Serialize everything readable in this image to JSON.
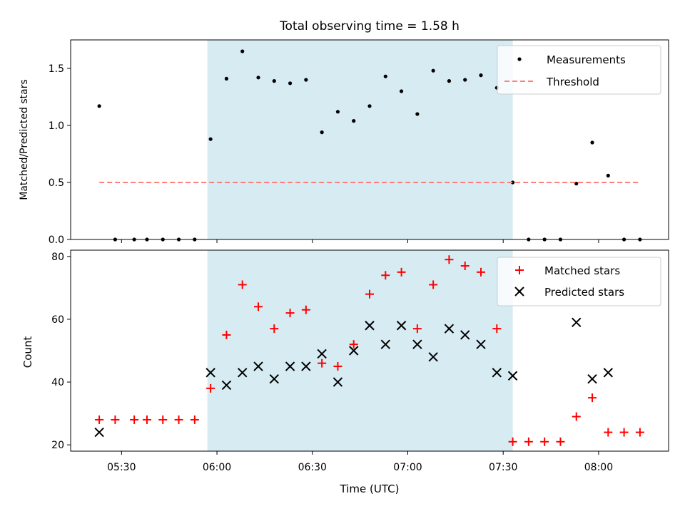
{
  "chart_data": [
    {
      "type": "scatter",
      "title": "Total observing time = 1.58 h",
      "ylabel": "Matched/Predicted stars",
      "xlabel": "",
      "ylim": [
        0,
        1.75
      ],
      "xlim": [
        "05:14",
        "08:22"
      ],
      "yticks": [
        {
          "value": 0.0,
          "label": "0.0"
        },
        {
          "value": 0.5,
          "label": "0.5"
        },
        {
          "value": 1.0,
          "label": "1.0"
        },
        {
          "value": 1.5,
          "label": "1.5"
        }
      ],
      "shaded_span": [
        "05:57",
        "07:33"
      ],
      "shaded_color": "#add8e6",
      "legend_position": "top-right",
      "series": [
        {
          "name": "Measurements",
          "marker": "dot",
          "color": "#000000",
          "points": [
            [
              "05:23",
              1.17
            ],
            [
              "05:28",
              0.0
            ],
            [
              "05:34",
              0.0
            ],
            [
              "05:38",
              0.0
            ],
            [
              "05:43",
              0.0
            ],
            [
              "05:48",
              0.0
            ],
            [
              "05:53",
              0.0
            ],
            [
              "05:58",
              0.88
            ],
            [
              "06:03",
              1.41
            ],
            [
              "06:08",
              1.65
            ],
            [
              "06:13",
              1.42
            ],
            [
              "06:18",
              1.39
            ],
            [
              "06:23",
              1.37
            ],
            [
              "06:28",
              1.4
            ],
            [
              "06:33",
              0.94
            ],
            [
              "06:38",
              1.12
            ],
            [
              "06:43",
              1.04
            ],
            [
              "06:48",
              1.17
            ],
            [
              "06:53",
              1.43
            ],
            [
              "06:58",
              1.3
            ],
            [
              "07:03",
              1.1
            ],
            [
              "07:08",
              1.48
            ],
            [
              "07:13",
              1.39
            ],
            [
              "07:18",
              1.4
            ],
            [
              "07:23",
              1.44
            ],
            [
              "07:28",
              1.33
            ],
            [
              "07:33",
              0.5
            ],
            [
              "07:38",
              0.0
            ],
            [
              "07:43",
              0.0
            ],
            [
              "07:48",
              0.0
            ],
            [
              "07:53",
              0.49
            ],
            [
              "07:58",
              0.85
            ],
            [
              "08:03",
              0.56
            ],
            [
              "08:08",
              0.0
            ],
            [
              "08:13",
              0.0
            ]
          ]
        },
        {
          "name": "Threshold",
          "marker": "dashed-line",
          "color": "#ff7f7f",
          "points": [
            [
              "05:23",
              0.5
            ],
            [
              "08:13",
              0.5
            ]
          ]
        }
      ]
    },
    {
      "type": "scatter",
      "title": "",
      "xlabel": "Time (UTC)",
      "ylabel": "Count",
      "ylim": [
        18,
        82
      ],
      "xlim": [
        "05:14",
        "08:22"
      ],
      "xticks": [
        "05:30",
        "06:00",
        "06:30",
        "07:00",
        "07:30",
        "08:00"
      ],
      "yticks": [
        {
          "value": 20,
          "label": "20"
        },
        {
          "value": 40,
          "label": "40"
        },
        {
          "value": 60,
          "label": "60"
        },
        {
          "value": 80,
          "label": "80"
        }
      ],
      "shaded_span": [
        "05:57",
        "07:33"
      ],
      "shaded_color": "#add8e6",
      "legend_position": "top-right",
      "series": [
        {
          "name": "Matched stars",
          "marker": "plus",
          "color": "#ff0000",
          "points": [
            [
              "05:23",
              28
            ],
            [
              "05:28",
              28
            ],
            [
              "05:34",
              28
            ],
            [
              "05:38",
              28
            ],
            [
              "05:43",
              28
            ],
            [
              "05:48",
              28
            ],
            [
              "05:53",
              28
            ],
            [
              "05:58",
              38
            ],
            [
              "06:03",
              55
            ],
            [
              "06:08",
              71
            ],
            [
              "06:13",
              64
            ],
            [
              "06:18",
              57
            ],
            [
              "06:23",
              62
            ],
            [
              "06:28",
              63
            ],
            [
              "06:33",
              46
            ],
            [
              "06:38",
              45
            ],
            [
              "06:43",
              52
            ],
            [
              "06:48",
              68
            ],
            [
              "06:53",
              74
            ],
            [
              "06:58",
              75
            ],
            [
              "07:03",
              57
            ],
            [
              "07:08",
              71
            ],
            [
              "07:13",
              79
            ],
            [
              "07:18",
              77
            ],
            [
              "07:23",
              75
            ],
            [
              "07:28",
              57
            ],
            [
              "07:33",
              21
            ],
            [
              "07:38",
              21
            ],
            [
              "07:43",
              21
            ],
            [
              "07:48",
              21
            ],
            [
              "07:53",
              29
            ],
            [
              "07:58",
              35
            ],
            [
              "08:03",
              24
            ],
            [
              "08:08",
              24
            ],
            [
              "08:13",
              24
            ]
          ]
        },
        {
          "name": "Predicted stars",
          "marker": "x",
          "color": "#000000",
          "points": [
            [
              "05:23",
              24
            ],
            [
              "05:58",
              43
            ],
            [
              "06:03",
              39
            ],
            [
              "06:08",
              43
            ],
            [
              "06:13",
              45
            ],
            [
              "06:18",
              41
            ],
            [
              "06:23",
              45
            ],
            [
              "06:28",
              45
            ],
            [
              "06:33",
              49
            ],
            [
              "06:38",
              40
            ],
            [
              "06:43",
              50
            ],
            [
              "06:48",
              58
            ],
            [
              "06:53",
              52
            ],
            [
              "06:58",
              58
            ],
            [
              "07:03",
              52
            ],
            [
              "07:08",
              48
            ],
            [
              "07:13",
              57
            ],
            [
              "07:18",
              55
            ],
            [
              "07:23",
              52
            ],
            [
              "07:28",
              43
            ],
            [
              "07:33",
              42
            ],
            [
              "07:53",
              59
            ],
            [
              "07:58",
              41
            ],
            [
              "08:03",
              43
            ]
          ]
        }
      ]
    }
  ]
}
